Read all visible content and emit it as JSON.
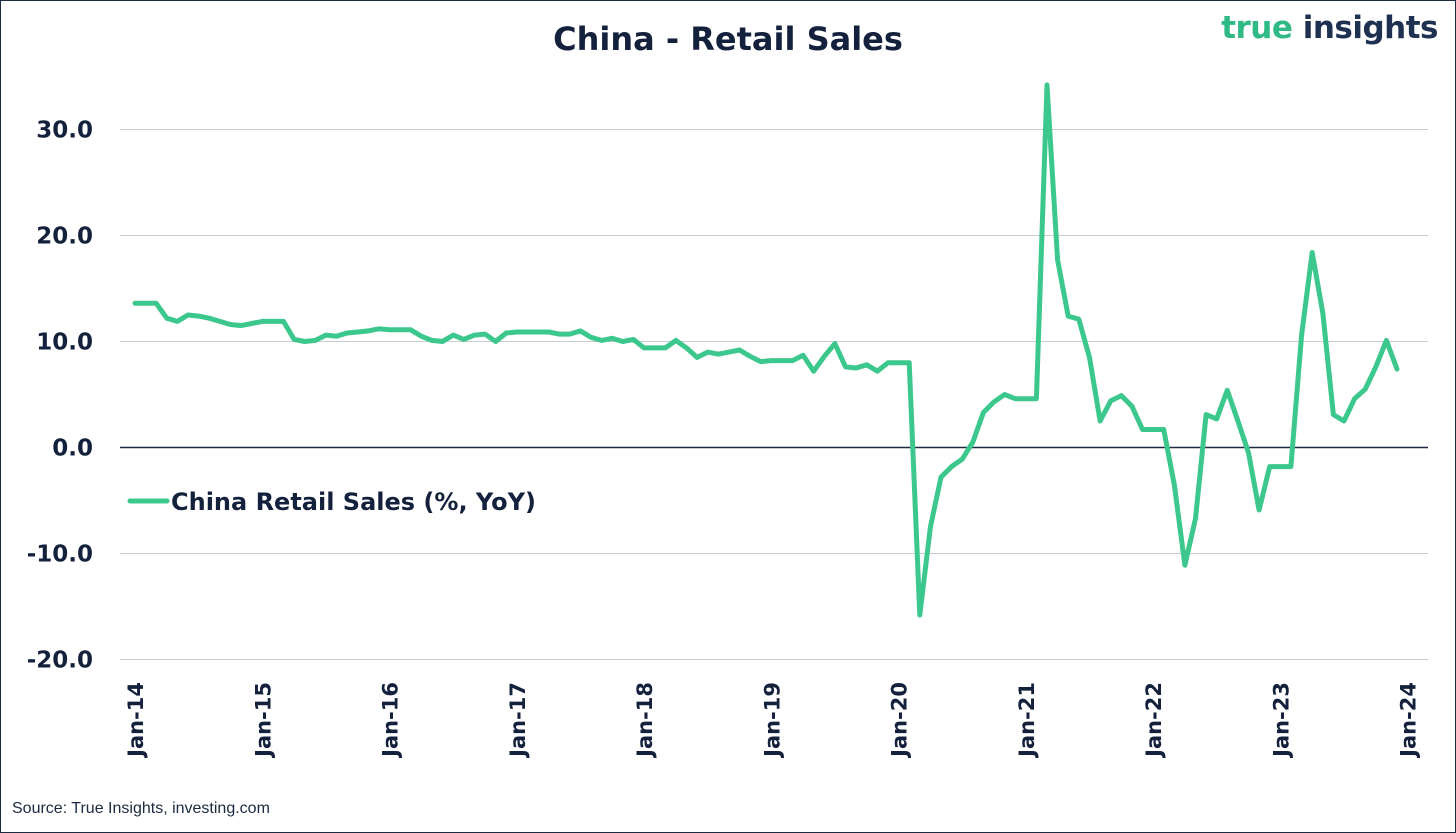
{
  "header": {
    "title": "China - Retail Sales",
    "brand_part1": "true",
    "brand_part2": "insights"
  },
  "footer": {
    "source": "Source: True Insights, investing.com"
  },
  "colors": {
    "series": "#3cc88c",
    "text": "#14213d",
    "grid": "#c8ccd2",
    "zero_line": "#1b2a41"
  },
  "chart_data": {
    "type": "line",
    "title": "China - Retail Sales",
    "xlabel": "",
    "ylabel": "",
    "ylim": [
      -20,
      33
    ],
    "yticks": [
      -20,
      -10,
      0,
      10,
      20,
      30
    ],
    "ytick_labels": [
      "-20.0",
      "-10.0",
      "0.0",
      "10.0",
      "20.0",
      "30.0"
    ],
    "x_tick_labels": [
      "Jan-14",
      "Jan-15",
      "Jan-16",
      "Jan-17",
      "Jan-18",
      "Jan-19",
      "Jan-20",
      "Jan-21",
      "Jan-22",
      "Jan-23",
      "Jan-24"
    ],
    "grid": true,
    "legend_position": "left-middle",
    "series": [
      {
        "name": "China Retail Sales (%, YoY)",
        "start": "Jan-14",
        "frequency": "monthly",
        "values": [
          13.6,
          13.6,
          13.6,
          12.2,
          11.9,
          12.5,
          12.4,
          12.2,
          11.9,
          11.6,
          11.5,
          11.7,
          11.9,
          11.9,
          11.9,
          10.2,
          10.0,
          10.1,
          10.6,
          10.5,
          10.8,
          10.9,
          11.0,
          11.2,
          11.1,
          11.1,
          11.1,
          10.5,
          10.1,
          10.0,
          10.6,
          10.2,
          10.6,
          10.7,
          10.0,
          10.8,
          10.9,
          10.9,
          10.9,
          10.9,
          10.7,
          10.7,
          11.0,
          10.4,
          10.1,
          10.3,
          10.0,
          10.2,
          9.4,
          9.4,
          9.4,
          10.1,
          9.4,
          8.5,
          9.0,
          8.8,
          9.0,
          9.2,
          8.6,
          8.1,
          8.2,
          8.2,
          8.2,
          8.7,
          7.2,
          8.6,
          9.8,
          7.6,
          7.5,
          7.8,
          7.2,
          8.0,
          8.0,
          8.0,
          -15.8,
          -7.5,
          -2.8,
          -1.8,
          -1.1,
          0.5,
          3.3,
          4.3,
          5.0,
          4.6,
          4.6,
          4.6,
          34.2,
          17.7,
          12.4,
          12.1,
          8.5,
          2.5,
          4.4,
          4.9,
          3.9,
          1.7,
          1.7,
          1.7,
          -3.5,
          -11.1,
          -6.7,
          3.1,
          2.7,
          5.4,
          2.5,
          -0.5,
          -5.9,
          -1.8,
          -1.8,
          -1.8,
          10.6,
          18.4,
          12.7,
          3.1,
          2.5,
          4.6,
          5.5,
          7.6,
          10.1,
          7.4
        ]
      }
    ]
  }
}
